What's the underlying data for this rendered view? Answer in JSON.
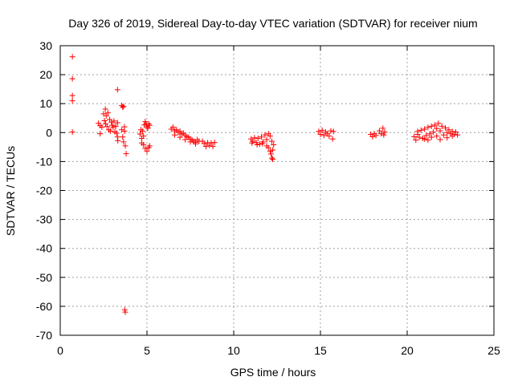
{
  "chart_data": {
    "type": "scatter",
    "title": "Day 326 of 2019, Sidereal Day-to-day VTEC variation (SDTVAR) for receiver nium",
    "xlabel": "GPS time / hours",
    "ylabel": "SDTVAR / TECUs",
    "xlim": [
      0,
      25
    ],
    "ylim": [
      -70,
      30
    ],
    "xticks": [
      0,
      5,
      10,
      15,
      20,
      25
    ],
    "yticks": [
      30,
      20,
      10,
      0,
      -10,
      -20,
      -30,
      -40,
      -50,
      -60,
      -70
    ],
    "grid": true,
    "marker": "+",
    "color": "#ff0000",
    "series": [
      {
        "name": "SDTVAR",
        "points": [
          [
            0.7,
            26.2
          ],
          [
            0.7,
            18.6
          ],
          [
            0.7,
            12.8
          ],
          [
            0.7,
            11.0
          ],
          [
            0.7,
            0.2
          ],
          [
            2.2,
            3.2
          ],
          [
            2.3,
            2.4
          ],
          [
            2.3,
            -0.4
          ],
          [
            2.4,
            1.9
          ],
          [
            2.5,
            6.5
          ],
          [
            2.55,
            4.1
          ],
          [
            2.6,
            8.1
          ],
          [
            2.62,
            3.0
          ],
          [
            2.65,
            5.8
          ],
          [
            2.7,
            2.1
          ],
          [
            2.75,
            6.8
          ],
          [
            2.8,
            1.0
          ],
          [
            2.85,
            4.5
          ],
          [
            2.9,
            0.5
          ],
          [
            2.95,
            3.6
          ],
          [
            3.0,
            2.5
          ],
          [
            3.05,
            1.8
          ],
          [
            3.1,
            4.0
          ],
          [
            3.15,
            0.3
          ],
          [
            3.2,
            2.2
          ],
          [
            3.25,
            -0.2
          ],
          [
            3.3,
            3.4
          ],
          [
            3.3,
            14.8
          ],
          [
            3.3,
            -1.5
          ],
          [
            3.32,
            -2.8
          ],
          [
            3.55,
            9.4
          ],
          [
            3.6,
            8.8
          ],
          [
            3.65,
            9.0
          ],
          [
            3.55,
            1.0
          ],
          [
            3.6,
            -1.5
          ],
          [
            3.65,
            -3.2
          ],
          [
            3.7,
            0.5
          ],
          [
            3.7,
            2.0
          ],
          [
            3.75,
            -4.6
          ],
          [
            3.8,
            -7.3
          ],
          [
            3.72,
            -61.2
          ],
          [
            3.75,
            -62.0
          ],
          [
            4.6,
            -0.5
          ],
          [
            4.65,
            1.0
          ],
          [
            4.7,
            -2.0
          ],
          [
            4.75,
            0.5
          ],
          [
            4.8,
            -1.2
          ],
          [
            4.85,
            2.6
          ],
          [
            4.9,
            3.8
          ],
          [
            4.95,
            3.0
          ],
          [
            5.0,
            2.0
          ],
          [
            5.05,
            1.5
          ],
          [
            5.1,
            3.0
          ],
          [
            5.15,
            2.5
          ],
          [
            4.7,
            -3.6
          ],
          [
            4.8,
            -4.2
          ],
          [
            4.9,
            -5.5
          ],
          [
            5.0,
            -6.4
          ],
          [
            5.1,
            -5.2
          ],
          [
            5.15,
            -4.6
          ],
          [
            6.4,
            1.2
          ],
          [
            6.5,
            1.9
          ],
          [
            6.6,
            0.6
          ],
          [
            6.7,
            1.0
          ],
          [
            6.8,
            0.0
          ],
          [
            6.9,
            0.5
          ],
          [
            7.0,
            -0.5
          ],
          [
            7.1,
            -0.2
          ],
          [
            7.2,
            -1.0
          ],
          [
            7.3,
            -1.4
          ],
          [
            7.4,
            -1.6
          ],
          [
            7.5,
            -2.2
          ],
          [
            7.6,
            -2.6
          ],
          [
            7.7,
            -3.0
          ],
          [
            7.8,
            -3.4
          ],
          [
            7.9,
            -2.4
          ],
          [
            8.0,
            -3.0
          ],
          [
            6.6,
            -0.8
          ],
          [
            6.9,
            -1.6
          ],
          [
            7.2,
            -2.4
          ],
          [
            7.5,
            -3.2
          ],
          [
            7.8,
            -3.9
          ],
          [
            8.2,
            -3.0
          ],
          [
            8.3,
            -3.8
          ],
          [
            8.4,
            -4.8
          ],
          [
            8.5,
            -3.5
          ],
          [
            8.6,
            -4.4
          ],
          [
            8.7,
            -3.6
          ],
          [
            8.8,
            -4.8
          ],
          [
            8.9,
            -3.4
          ],
          [
            11.0,
            -2.2
          ],
          [
            11.1,
            -3.0
          ],
          [
            11.2,
            -1.8
          ],
          [
            11.3,
            -3.4
          ],
          [
            11.4,
            -2.0
          ],
          [
            11.5,
            -4.0
          ],
          [
            11.6,
            -1.5
          ],
          [
            11.7,
            -3.2
          ],
          [
            11.8,
            -0.8
          ],
          [
            11.9,
            -2.4
          ],
          [
            12.0,
            -0.4
          ],
          [
            12.1,
            -1.2
          ],
          [
            11.05,
            -3.6
          ],
          [
            11.35,
            -4.2
          ],
          [
            11.65,
            -3.8
          ],
          [
            11.9,
            -4.6
          ],
          [
            12.0,
            -5.2
          ],
          [
            12.1,
            -6.4
          ],
          [
            12.15,
            -7.4
          ],
          [
            12.2,
            -8.8
          ],
          [
            12.25,
            -6.0
          ],
          [
            12.3,
            -4.2
          ],
          [
            12.2,
            -3.0
          ],
          [
            12.25,
            -9.2
          ],
          [
            14.9,
            0.4
          ],
          [
            15.0,
            -0.6
          ],
          [
            15.1,
            0.8
          ],
          [
            15.2,
            -1.0
          ],
          [
            15.3,
            0.2
          ],
          [
            15.4,
            -0.4
          ],
          [
            15.5,
            -1.2
          ],
          [
            15.6,
            0.6
          ],
          [
            15.7,
            -2.2
          ],
          [
            15.75,
            0.4
          ],
          [
            17.9,
            -0.6
          ],
          [
            18.0,
            -1.4
          ],
          [
            18.1,
            -0.4
          ],
          [
            18.2,
            -1.0
          ],
          [
            18.4,
            0.6
          ],
          [
            18.5,
            -0.4
          ],
          [
            18.6,
            1.5
          ],
          [
            18.7,
            0.2
          ],
          [
            18.65,
            -0.8
          ],
          [
            20.4,
            -1.4
          ],
          [
            20.5,
            -2.6
          ],
          [
            20.6,
            -0.6
          ],
          [
            20.7,
            -1.6
          ],
          [
            20.8,
            0.8
          ],
          [
            20.9,
            -2.0
          ],
          [
            21.0,
            1.2
          ],
          [
            21.1,
            -1.0
          ],
          [
            21.2,
            1.8
          ],
          [
            21.3,
            -0.4
          ],
          [
            21.4,
            2.2
          ],
          [
            21.5,
            0.2
          ],
          [
            21.6,
            2.6
          ],
          [
            21.7,
            -1.2
          ],
          [
            21.8,
            3.2
          ],
          [
            21.9,
            0.6
          ],
          [
            22.0,
            2.2
          ],
          [
            22.1,
            -0.8
          ],
          [
            22.2,
            1.6
          ],
          [
            22.3,
            0.0
          ],
          [
            22.4,
            1.0
          ],
          [
            22.5,
            -0.4
          ],
          [
            22.6,
            0.4
          ],
          [
            22.7,
            -0.6
          ],
          [
            22.8,
            0.2
          ],
          [
            22.9,
            -0.8
          ],
          [
            20.6,
            0.4
          ],
          [
            21.0,
            -2.2
          ],
          [
            21.4,
            -1.6
          ],
          [
            21.9,
            -2.4
          ],
          [
            22.3,
            -1.8
          ],
          [
            21.7,
            1.4
          ],
          [
            21.2,
            -2.6
          ],
          [
            22.6,
            -1.2
          ]
        ]
      }
    ]
  }
}
